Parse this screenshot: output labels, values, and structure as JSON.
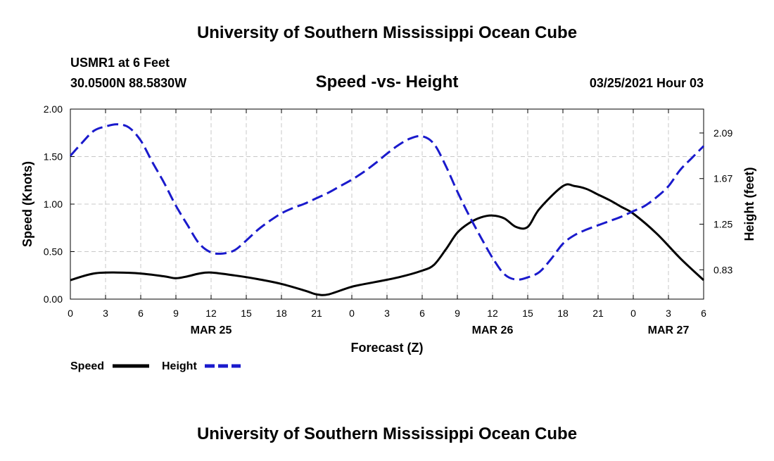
{
  "header": {
    "title": "University of Southern Mississippi Ocean Cube",
    "station": "USMR1 at 6 Feet",
    "coords": "30.0500N 88.5830W",
    "subtitle": "Speed -vs- Height",
    "datetime": "03/25/2021 Hour 03"
  },
  "footer": {
    "title": "University of Southern Mississippi Ocean Cube"
  },
  "chart_data": {
    "type": "line",
    "title": "Speed -vs- Height",
    "xlabel": "Forecast (Z)",
    "ylabel_left": "Speed (Knots)",
    "ylabel_right": "Height (feet)",
    "x_tick_labels": [
      "0",
      "3",
      "6",
      "9",
      "12",
      "15",
      "18",
      "21",
      "0",
      "3",
      "6",
      "9",
      "12",
      "15",
      "18",
      "21",
      "0",
      "3",
      "6"
    ],
    "date_labels": [
      {
        "text": "MAR 25",
        "tick_index": 4
      },
      {
        "text": "MAR 26",
        "tick_index": 12
      },
      {
        "text": "MAR 27",
        "tick_index": 17
      }
    ],
    "x_range_hours": [
      0,
      54
    ],
    "left_axis": {
      "min": 0,
      "max": 2,
      "ticks": [
        0,
        0.5,
        1,
        1.5,
        2
      ],
      "tick_labels": [
        "0.00",
        "0.50",
        "1.00",
        "1.50",
        "2.00"
      ]
    },
    "right_axis": {
      "min": 0.56,
      "max": 2.31,
      "ticks": [
        0.83,
        1.25,
        1.67,
        2.09
      ],
      "tick_labels": [
        "0.83",
        "1.25",
        "1.67",
        "2.09"
      ]
    },
    "grid": true,
    "legend": [
      {
        "label": "Speed",
        "color": "#000000",
        "style": "solid"
      },
      {
        "label": "Height",
        "color": "#1a1acc",
        "style": "dashed"
      }
    ],
    "series": [
      {
        "name": "Speed",
        "axis": "left",
        "color": "#000000",
        "x": [
          0,
          2,
          4,
          6,
          8,
          9,
          10,
          11,
          12,
          14,
          16,
          18,
          20,
          21,
          22,
          24,
          26,
          28,
          30,
          31,
          32,
          33,
          34,
          35,
          36,
          37,
          38,
          39,
          40,
          42,
          43,
          44,
          45,
          46,
          47,
          48,
          50,
          52,
          54
        ],
        "y": [
          0.2,
          0.27,
          0.28,
          0.27,
          0.24,
          0.22,
          0.24,
          0.27,
          0.28,
          0.25,
          0.21,
          0.16,
          0.09,
          0.05,
          0.05,
          0.13,
          0.18,
          0.23,
          0.3,
          0.36,
          0.52,
          0.7,
          0.8,
          0.86,
          0.88,
          0.85,
          0.76,
          0.76,
          0.95,
          1.19,
          1.19,
          1.16,
          1.1,
          1.04,
          0.97,
          0.9,
          0.69,
          0.43,
          0.2
        ]
      },
      {
        "name": "Height",
        "axis": "right",
        "color": "#1a1acc",
        "x": [
          0,
          1,
          2,
          3,
          4,
          5,
          6,
          7,
          8,
          9,
          10,
          11,
          12,
          13,
          14,
          15,
          16,
          17,
          18,
          19,
          20,
          21,
          22,
          23,
          24,
          25,
          26,
          27,
          28,
          29,
          30,
          31,
          32,
          33,
          34,
          35,
          36,
          37,
          38,
          39,
          40,
          41,
          42,
          43,
          44,
          45,
          46,
          47,
          48,
          49,
          50,
          51,
          52,
          53,
          54
        ],
        "y": [
          1.88,
          2.0,
          2.11,
          2.15,
          2.17,
          2.14,
          2.02,
          1.82,
          1.63,
          1.42,
          1.24,
          1.07,
          0.99,
          0.98,
          1.01,
          1.1,
          1.2,
          1.28,
          1.35,
          1.4,
          1.44,
          1.49,
          1.54,
          1.6,
          1.66,
          1.73,
          1.81,
          1.9,
          1.98,
          2.04,
          2.06,
          1.99,
          1.79,
          1.55,
          1.33,
          1.13,
          0.94,
          0.79,
          0.74,
          0.76,
          0.81,
          0.93,
          1.07,
          1.15,
          1.2,
          1.24,
          1.28,
          1.32,
          1.37,
          1.42,
          1.5,
          1.6,
          1.75,
          1.86,
          1.97
        ]
      }
    ]
  }
}
